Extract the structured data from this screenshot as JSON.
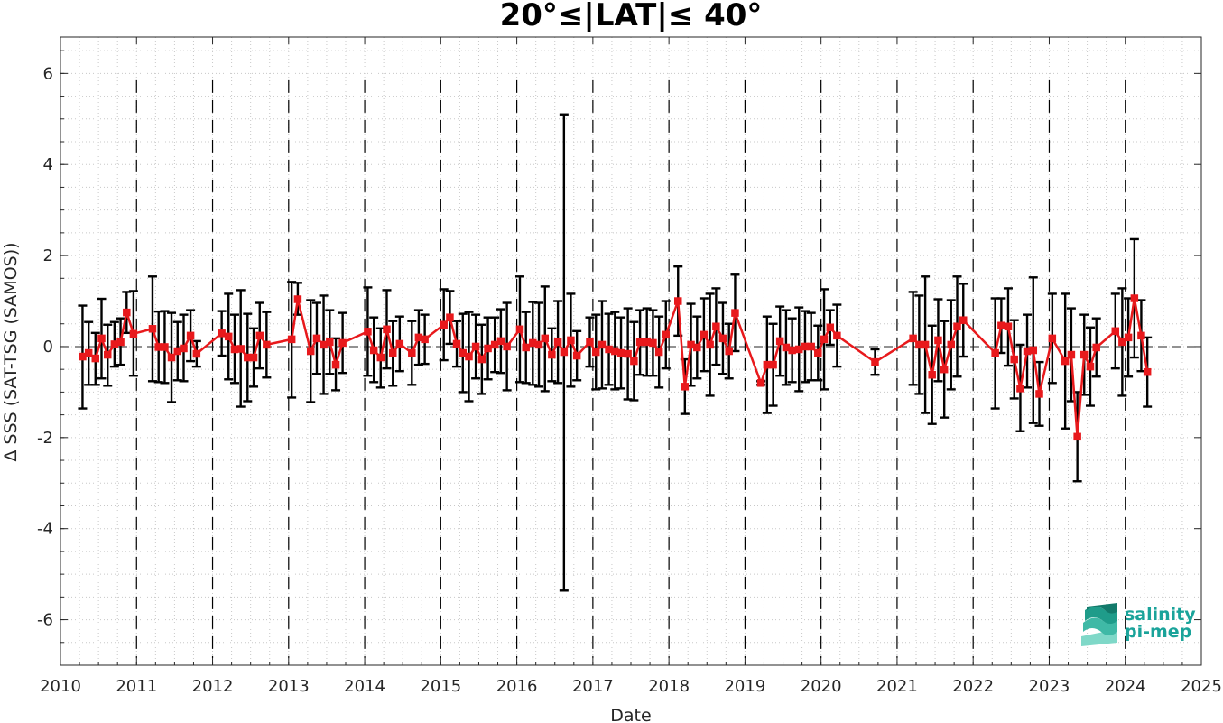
{
  "chart_data": {
    "type": "line",
    "title": "20°≤|LAT|≤ 40°",
    "xlabel": "Date",
    "ylabel": "Δ SSS (SAT-TSG (SAMOS))",
    "xlim": [
      2010,
      2025
    ],
    "ylim": [
      -7,
      6.8
    ],
    "xticks": [
      "2010",
      "2011",
      "2012",
      "2013",
      "2014",
      "2015",
      "2016",
      "2017",
      "2018",
      "2019",
      "2020",
      "2021",
      "2022",
      "2023",
      "2024",
      "2025"
    ],
    "yticks": [
      "-6",
      "-4",
      "-2",
      "0",
      "2",
      "4",
      "6"
    ],
    "grid": "minor dotted",
    "year_dividers": "dashed vertical lines at each year",
    "zero_line": "dashed horizontal at 0",
    "series": [
      {
        "color": "#e8191c",
        "errorbar_color": "#000000",
        "marker": "square",
        "points": [
          {
            "x": 2010.29,
            "y": -0.22,
            "lo": -1.36,
            "hi": 0.9
          },
          {
            "x": 2010.37,
            "y": -0.14,
            "lo": -0.84,
            "hi": 0.54
          },
          {
            "x": 2010.46,
            "y": -0.26,
            "lo": -0.84,
            "hi": 0.3
          },
          {
            "x": 2010.54,
            "y": 0.18,
            "lo": -0.7,
            "hi": 1.05
          },
          {
            "x": 2010.62,
            "y": -0.18,
            "lo": -0.86,
            "hi": 0.48
          },
          {
            "x": 2010.71,
            "y": 0.05,
            "lo": -0.44,
            "hi": 0.54
          },
          {
            "x": 2010.79,
            "y": 0.1,
            "lo": -0.4,
            "hi": 0.62
          },
          {
            "x": 2010.87,
            "y": 0.75,
            "lo": 0.3,
            "hi": 1.2
          },
          {
            "x": 2010.96,
            "y": 0.28,
            "lo": -0.64,
            "hi": 1.22
          },
          {
            "x": 2011.21,
            "y": 0.39,
            "lo": -0.76,
            "hi": 1.54
          },
          {
            "x": 2011.29,
            "y": -0.01,
            "lo": -0.78,
            "hi": 0.77
          },
          {
            "x": 2011.37,
            "y": -0.01,
            "lo": -0.8,
            "hi": 0.78
          },
          {
            "x": 2011.46,
            "y": -0.24,
            "lo": -1.22,
            "hi": 0.74
          },
          {
            "x": 2011.54,
            "y": -0.1,
            "lo": -0.74,
            "hi": 0.54
          },
          {
            "x": 2011.62,
            "y": -0.04,
            "lo": -0.76,
            "hi": 0.7
          },
          {
            "x": 2011.71,
            "y": 0.24,
            "lo": -0.32,
            "hi": 0.8
          },
          {
            "x": 2011.79,
            "y": -0.16,
            "lo": -0.44,
            "hi": 0.12
          },
          {
            "x": 2012.12,
            "y": 0.29,
            "lo": -0.2,
            "hi": 0.78
          },
          {
            "x": 2012.21,
            "y": 0.22,
            "lo": -0.72,
            "hi": 1.16
          },
          {
            "x": 2012.29,
            "y": -0.06,
            "lo": -0.8,
            "hi": 0.7
          },
          {
            "x": 2012.37,
            "y": -0.05,
            "lo": -1.32,
            "hi": 1.24
          },
          {
            "x": 2012.46,
            "y": -0.24,
            "lo": -1.2,
            "hi": 0.72
          },
          {
            "x": 2012.54,
            "y": -0.24,
            "lo": -0.88,
            "hi": 0.4
          },
          {
            "x": 2012.62,
            "y": 0.24,
            "lo": -0.48,
            "hi": 0.96
          },
          {
            "x": 2012.71,
            "y": 0.04,
            "lo": -0.68,
            "hi": 0.76
          },
          {
            "x": 2013.04,
            "y": 0.16,
            "lo": -1.12,
            "hi": 1.42
          },
          {
            "x": 2013.12,
            "y": 1.04,
            "lo": 0.7,
            "hi": 1.4
          },
          {
            "x": 2013.29,
            "y": -0.1,
            "lo": -1.22,
            "hi": 1.02
          },
          {
            "x": 2013.37,
            "y": 0.18,
            "lo": -0.6,
            "hi": 0.96
          },
          {
            "x": 2013.46,
            "y": 0.04,
            "lo": -1.04,
            "hi": 1.12
          },
          {
            "x": 2013.54,
            "y": 0.1,
            "lo": -0.6,
            "hi": 0.8
          },
          {
            "x": 2013.62,
            "y": -0.4,
            "lo": -0.96,
            "hi": 0.18
          },
          {
            "x": 2013.71,
            "y": 0.08,
            "lo": -0.58,
            "hi": 0.74
          },
          {
            "x": 2014.04,
            "y": 0.33,
            "lo": -0.64,
            "hi": 1.3
          },
          {
            "x": 2014.12,
            "y": -0.08,
            "lo": -0.78,
            "hi": 0.64
          },
          {
            "x": 2014.21,
            "y": -0.24,
            "lo": -0.9,
            "hi": 0.4
          },
          {
            "x": 2014.29,
            "y": 0.38,
            "lo": -0.48,
            "hi": 1.24
          },
          {
            "x": 2014.37,
            "y": -0.14,
            "lo": -0.86,
            "hi": 0.56
          },
          {
            "x": 2014.46,
            "y": 0.06,
            "lo": -0.54,
            "hi": 0.66
          },
          {
            "x": 2014.62,
            "y": -0.14,
            "lo": -0.84,
            "hi": 0.56
          },
          {
            "x": 2014.71,
            "y": 0.2,
            "lo": -0.4,
            "hi": 0.8
          },
          {
            "x": 2014.79,
            "y": 0.16,
            "lo": -0.38,
            "hi": 0.7
          },
          {
            "x": 2015.04,
            "y": 0.48,
            "lo": -0.3,
            "hi": 1.26
          },
          {
            "x": 2015.12,
            "y": 0.64,
            "lo": 0.06,
            "hi": 1.22
          },
          {
            "x": 2015.21,
            "y": 0.06,
            "lo": -0.44,
            "hi": 0.56
          },
          {
            "x": 2015.29,
            "y": -0.14,
            "lo": -1.0,
            "hi": 0.72
          },
          {
            "x": 2015.37,
            "y": -0.22,
            "lo": -1.2,
            "hi": 0.76
          },
          {
            "x": 2015.46,
            "y": 0.0,
            "lo": -0.7,
            "hi": 0.7
          },
          {
            "x": 2015.54,
            "y": -0.28,
            "lo": -1.04,
            "hi": 0.48
          },
          {
            "x": 2015.62,
            "y": -0.04,
            "lo": -0.72,
            "hi": 0.64
          },
          {
            "x": 2015.71,
            "y": 0.04,
            "lo": -0.56,
            "hi": 0.64
          },
          {
            "x": 2015.79,
            "y": 0.12,
            "lo": -0.58,
            "hi": 0.82
          },
          {
            "x": 2015.87,
            "y": 0.0,
            "lo": -0.96,
            "hi": 0.96
          },
          {
            "x": 2016.04,
            "y": 0.38,
            "lo": -0.78,
            "hi": 1.54
          },
          {
            "x": 2016.12,
            "y": -0.02,
            "lo": -0.8,
            "hi": 0.76
          },
          {
            "x": 2016.21,
            "y": 0.08,
            "lo": -0.84,
            "hi": 0.98
          },
          {
            "x": 2016.29,
            "y": 0.04,
            "lo": -0.88,
            "hi": 0.96
          },
          {
            "x": 2016.37,
            "y": 0.18,
            "lo": -0.98,
            "hi": 1.32
          },
          {
            "x": 2016.46,
            "y": -0.18,
            "lo": -0.76,
            "hi": 0.4
          },
          {
            "x": 2016.54,
            "y": 0.1,
            "lo": -0.8,
            "hi": 1.0
          },
          {
            "x": 2016.62,
            "y": -0.12,
            "lo": -5.36,
            "hi": 5.1
          },
          {
            "x": 2016.71,
            "y": 0.14,
            "lo": -0.88,
            "hi": 1.16
          },
          {
            "x": 2016.79,
            "y": -0.2,
            "lo": -0.74,
            "hi": 0.34
          },
          {
            "x": 2016.96,
            "y": 0.1,
            "lo": -0.44,
            "hi": 0.64
          },
          {
            "x": 2017.04,
            "y": -0.12,
            "lo": -0.94,
            "hi": 0.7
          },
          {
            "x": 2017.12,
            "y": 0.04,
            "lo": -0.92,
            "hi": 1.0
          },
          {
            "x": 2017.21,
            "y": -0.06,
            "lo": -0.84,
            "hi": 0.72
          },
          {
            "x": 2017.29,
            "y": -0.1,
            "lo": -0.94,
            "hi": 0.76
          },
          {
            "x": 2017.37,
            "y": -0.14,
            "lo": -0.92,
            "hi": 0.64
          },
          {
            "x": 2017.46,
            "y": -0.16,
            "lo": -1.16,
            "hi": 0.84
          },
          {
            "x": 2017.54,
            "y": -0.32,
            "lo": -1.18,
            "hi": 0.54
          },
          {
            "x": 2017.62,
            "y": 0.1,
            "lo": -0.62,
            "hi": 0.8
          },
          {
            "x": 2017.71,
            "y": 0.1,
            "lo": -0.64,
            "hi": 0.84
          },
          {
            "x": 2017.79,
            "y": 0.08,
            "lo": -0.64,
            "hi": 0.8
          },
          {
            "x": 2017.87,
            "y": -0.12,
            "lo": -0.9,
            "hi": 0.66
          },
          {
            "x": 2017.96,
            "y": 0.26,
            "lo": -0.48,
            "hi": 1.0
          },
          {
            "x": 2018.12,
            "y": 1.0,
            "lo": 0.24,
            "hi": 1.76
          },
          {
            "x": 2018.21,
            "y": -0.88,
            "lo": -1.48,
            "hi": -0.28
          },
          {
            "x": 2018.29,
            "y": 0.04,
            "lo": -0.86,
            "hi": 0.94
          },
          {
            "x": 2018.37,
            "y": -0.02,
            "lo": -0.7,
            "hi": 0.66
          },
          {
            "x": 2018.46,
            "y": 0.26,
            "lo": -0.54,
            "hi": 1.06
          },
          {
            "x": 2018.54,
            "y": 0.04,
            "lo": -1.08,
            "hi": 1.16
          },
          {
            "x": 2018.62,
            "y": 0.44,
            "lo": -0.4,
            "hi": 1.28
          },
          {
            "x": 2018.71,
            "y": 0.18,
            "lo": -0.6,
            "hi": 0.96
          },
          {
            "x": 2018.79,
            "y": -0.1,
            "lo": -0.7,
            "hi": 0.5
          },
          {
            "x": 2018.87,
            "y": 0.74,
            "lo": -0.1,
            "hi": 1.58
          },
          {
            "x": 2019.21,
            "y": -0.8,
            "lo": -0.84,
            "hi": -0.76
          },
          {
            "x": 2019.29,
            "y": -0.4,
            "lo": -1.46,
            "hi": 0.66
          },
          {
            "x": 2019.37,
            "y": -0.4,
            "lo": -1.3,
            "hi": 0.5
          },
          {
            "x": 2019.46,
            "y": 0.12,
            "lo": -0.64,
            "hi": 0.88
          },
          {
            "x": 2019.54,
            "y": -0.02,
            "lo": -0.84,
            "hi": 0.8
          },
          {
            "x": 2019.62,
            "y": -0.08,
            "lo": -0.78,
            "hi": 0.62
          },
          {
            "x": 2019.71,
            "y": -0.06,
            "lo": -0.98,
            "hi": 0.86
          },
          {
            "x": 2019.79,
            "y": 0.0,
            "lo": -0.78,
            "hi": 0.78
          },
          {
            "x": 2019.87,
            "y": 0.0,
            "lo": -0.74,
            "hi": 0.74
          },
          {
            "x": 2019.96,
            "y": -0.14,
            "lo": -0.74,
            "hi": 0.46
          },
          {
            "x": 2020.04,
            "y": 0.16,
            "lo": -0.94,
            "hi": 1.26
          },
          {
            "x": 2020.12,
            "y": 0.42,
            "lo": 0.04,
            "hi": 0.8
          },
          {
            "x": 2020.21,
            "y": 0.24,
            "lo": -0.44,
            "hi": 0.92
          },
          {
            "x": 2020.71,
            "y": -0.34,
            "lo": -0.62,
            "hi": -0.06
          },
          {
            "x": 2021.21,
            "y": 0.18,
            "lo": -0.84,
            "hi": 1.2
          },
          {
            "x": 2021.29,
            "y": 0.04,
            "lo": -1.04,
            "hi": 1.12
          },
          {
            "x": 2021.37,
            "y": 0.04,
            "lo": -1.46,
            "hi": 1.54
          },
          {
            "x": 2021.46,
            "y": -0.62,
            "lo": -1.7,
            "hi": 0.46
          },
          {
            "x": 2021.54,
            "y": 0.14,
            "lo": -0.76,
            "hi": 1.04
          },
          {
            "x": 2021.62,
            "y": -0.5,
            "lo": -1.56,
            "hi": 0.56
          },
          {
            "x": 2021.71,
            "y": 0.04,
            "lo": -0.94,
            "hi": 1.02
          },
          {
            "x": 2021.79,
            "y": 0.44,
            "lo": -0.66,
            "hi": 1.54
          },
          {
            "x": 2021.87,
            "y": 0.58,
            "lo": -0.22,
            "hi": 1.38
          },
          {
            "x": 2022.29,
            "y": -0.14,
            "lo": -1.36,
            "hi": 1.06
          },
          {
            "x": 2022.37,
            "y": 0.46,
            "lo": -0.14,
            "hi": 1.06
          },
          {
            "x": 2022.46,
            "y": 0.44,
            "lo": -0.42,
            "hi": 1.28
          },
          {
            "x": 2022.54,
            "y": -0.28,
            "lo": -1.14,
            "hi": 0.58
          },
          {
            "x": 2022.62,
            "y": -0.92,
            "lo": -1.86,
            "hi": 0.04
          },
          {
            "x": 2022.71,
            "y": -0.1,
            "lo": -0.9,
            "hi": 0.7
          },
          {
            "x": 2022.79,
            "y": -0.08,
            "lo": -1.68,
            "hi": 1.52
          },
          {
            "x": 2022.87,
            "y": -1.04,
            "lo": -1.74,
            "hi": -0.34
          },
          {
            "x": 2023.04,
            "y": 0.18,
            "lo": -0.8,
            "hi": 1.16
          },
          {
            "x": 2023.21,
            "y": -0.32,
            "lo": -1.8,
            "hi": 1.16
          },
          {
            "x": 2023.29,
            "y": -0.18,
            "lo": -1.2,
            "hi": 0.84
          },
          {
            "x": 2023.37,
            "y": -1.98,
            "lo": -2.96,
            "hi": -1.0
          },
          {
            "x": 2023.46,
            "y": -0.18,
            "lo": -1.06,
            "hi": 0.7
          },
          {
            "x": 2023.54,
            "y": -0.44,
            "lo": -1.3,
            "hi": 0.42
          },
          {
            "x": 2023.62,
            "y": -0.02,
            "lo": -0.66,
            "hi": 0.62
          },
          {
            "x": 2023.87,
            "y": 0.34,
            "lo": -0.48,
            "hi": 1.16
          },
          {
            "x": 2023.96,
            "y": 0.1,
            "lo": -1.08,
            "hi": 1.28
          },
          {
            "x": 2024.04,
            "y": 0.2,
            "lo": -0.66,
            "hi": 1.06
          },
          {
            "x": 2024.12,
            "y": 1.06,
            "lo": -0.24,
            "hi": 2.36
          },
          {
            "x": 2024.21,
            "y": 0.24,
            "lo": -0.54,
            "hi": 1.02
          },
          {
            "x": 2024.29,
            "y": -0.56,
            "lo": -1.32,
            "hi": 0.2
          }
        ]
      }
    ]
  },
  "logo": {
    "line1": "salinity",
    "line2": "pi-mep",
    "color": "#1aa39a"
  }
}
